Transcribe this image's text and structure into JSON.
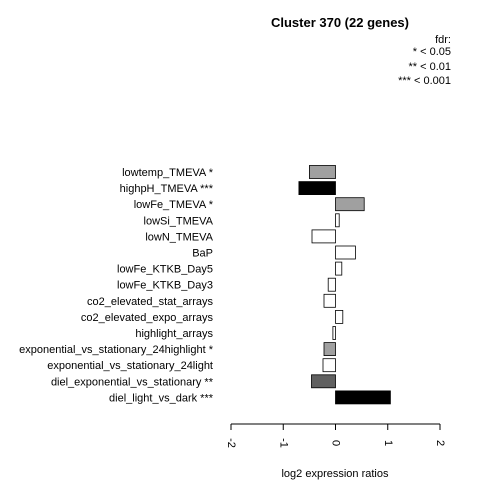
{
  "chart_data": {
    "type": "bar",
    "orientation": "horizontal",
    "title": "Cluster 370 (22 genes)",
    "xlabel": "log2 expression ratios",
    "ylabel": "",
    "xlim": [
      -2,
      2
    ],
    "xticks": [
      "-2",
      "-1",
      "0",
      "1",
      "2"
    ],
    "legend": {
      "title": "fdr:",
      "entries": [
        "* < 0.05",
        "** < 0.01",
        "*** < 0.001"
      ],
      "placement": "top-right"
    },
    "bars": [
      {
        "label": "lowtemp_TMEVA *",
        "value": -0.5,
        "color": "#a0a0a0"
      },
      {
        "label": "highpH_TMEVA ***",
        "value": -0.7,
        "color": "#000000"
      },
      {
        "label": "lowFe_TMEVA *",
        "value": 0.55,
        "color": "#a0a0a0"
      },
      {
        "label": "lowSi_TMEVA",
        "value": 0.07,
        "color": "#ffffff"
      },
      {
        "label": "lowN_TMEVA",
        "value": -0.45,
        "color": "#ffffff"
      },
      {
        "label": "BaP",
        "value": 0.38,
        "color": "#ffffff"
      },
      {
        "label": "lowFe_KTKB_Day5",
        "value": 0.12,
        "color": "#ffffff"
      },
      {
        "label": "lowFe_KTKB_Day3",
        "value": -0.14,
        "color": "#ffffff"
      },
      {
        "label": "co2_elevated_stat_arrays",
        "value": -0.22,
        "color": "#ffffff"
      },
      {
        "label": "co2_elevated_expo_arrays",
        "value": 0.14,
        "color": "#ffffff"
      },
      {
        "label": "highlight_arrays",
        "value": -0.05,
        "color": "#ffffff"
      },
      {
        "label": "exponential_vs_stationary_24highlight *",
        "value": -0.22,
        "color": "#a0a0a0"
      },
      {
        "label": "exponential_vs_stationary_24light",
        "value": -0.24,
        "color": "#ffffff"
      },
      {
        "label": "diel_exponential_vs_stationary **",
        "value": -0.46,
        "color": "#606060"
      },
      {
        "label": "diel_light_vs_dark ***",
        "value": 1.05,
        "color": "#000000"
      }
    ]
  }
}
